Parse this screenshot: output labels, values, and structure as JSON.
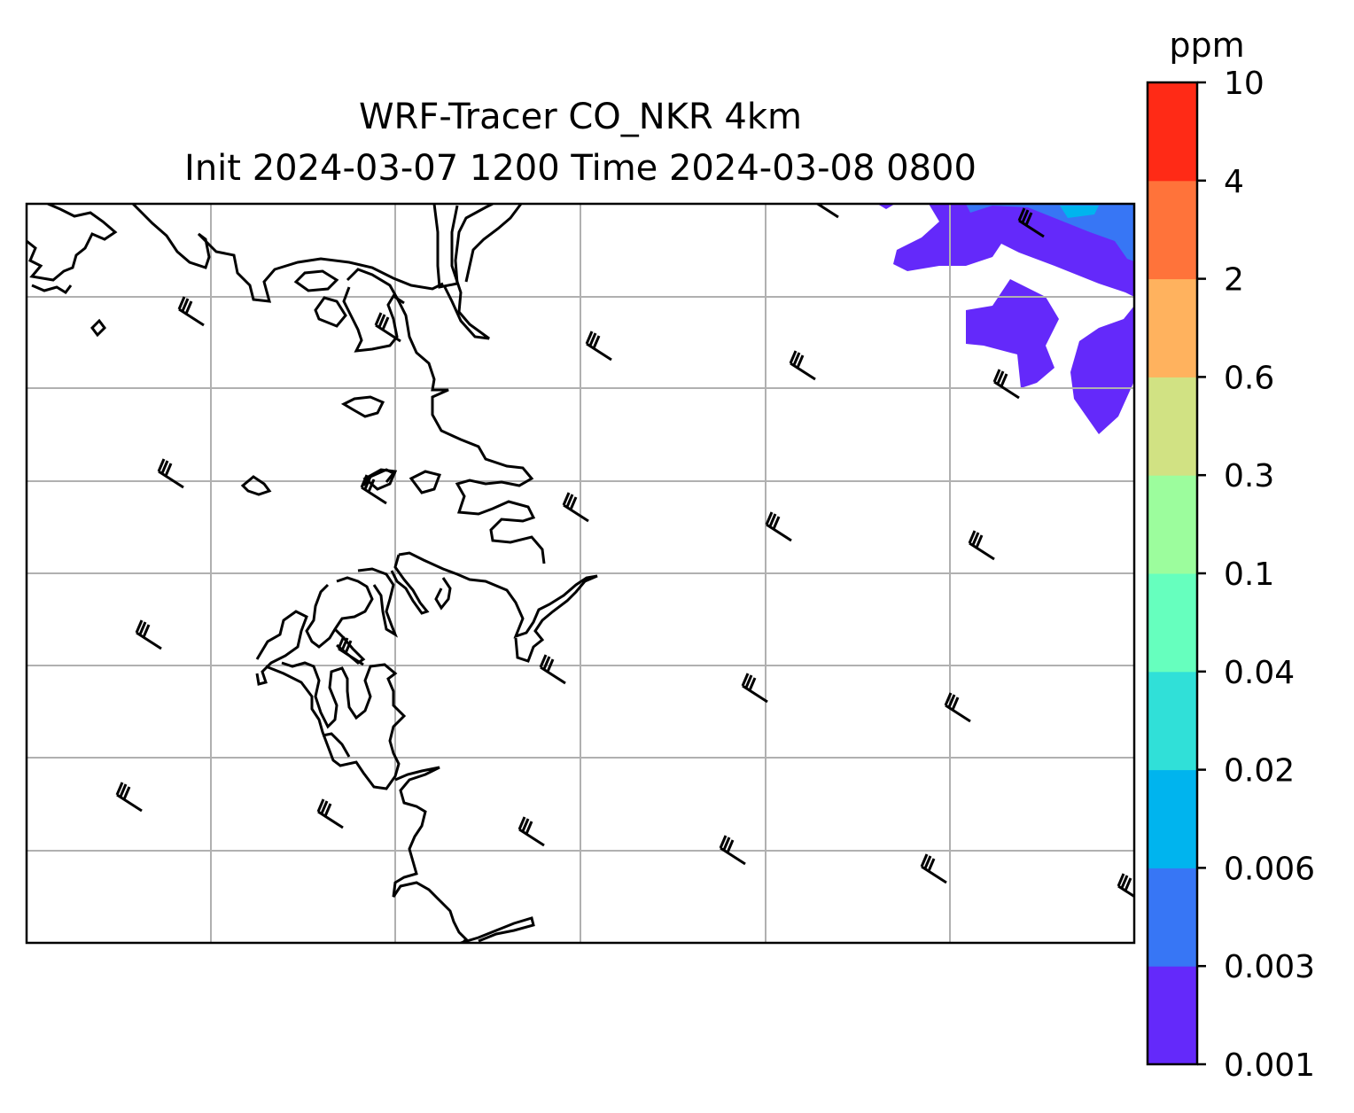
{
  "title_line1": "WRF-Tracer CO_NKR 4km",
  "title_line2": "Init 2024-03-07 1200 Time 2024-03-08 0800",
  "colorbar": {
    "unit": "ppm",
    "levels": [
      "0.001",
      "0.003",
      "0.006",
      "0.02",
      "0.04",
      "0.1",
      "0.3",
      "0.6",
      "2",
      "4",
      "10"
    ],
    "colors": [
      "#6429fa",
      "#3776f5",
      "#00b4ee",
      "#30e0d8",
      "#66ffbe",
      "#9cfd9d",
      "#d1e283",
      "#ffb25e",
      "#ff733a",
      "#ff2a16"
    ]
  },
  "field": {
    "name": "CO_NKR tracer concentration",
    "shaded_region": "northeast corner",
    "dominant_level": "0.001-0.003",
    "max_level": "0.006-0.02"
  },
  "wind_barbs": {
    "direction": "from northwest",
    "rows": 5,
    "cols": 6
  },
  "gridlines": true
}
